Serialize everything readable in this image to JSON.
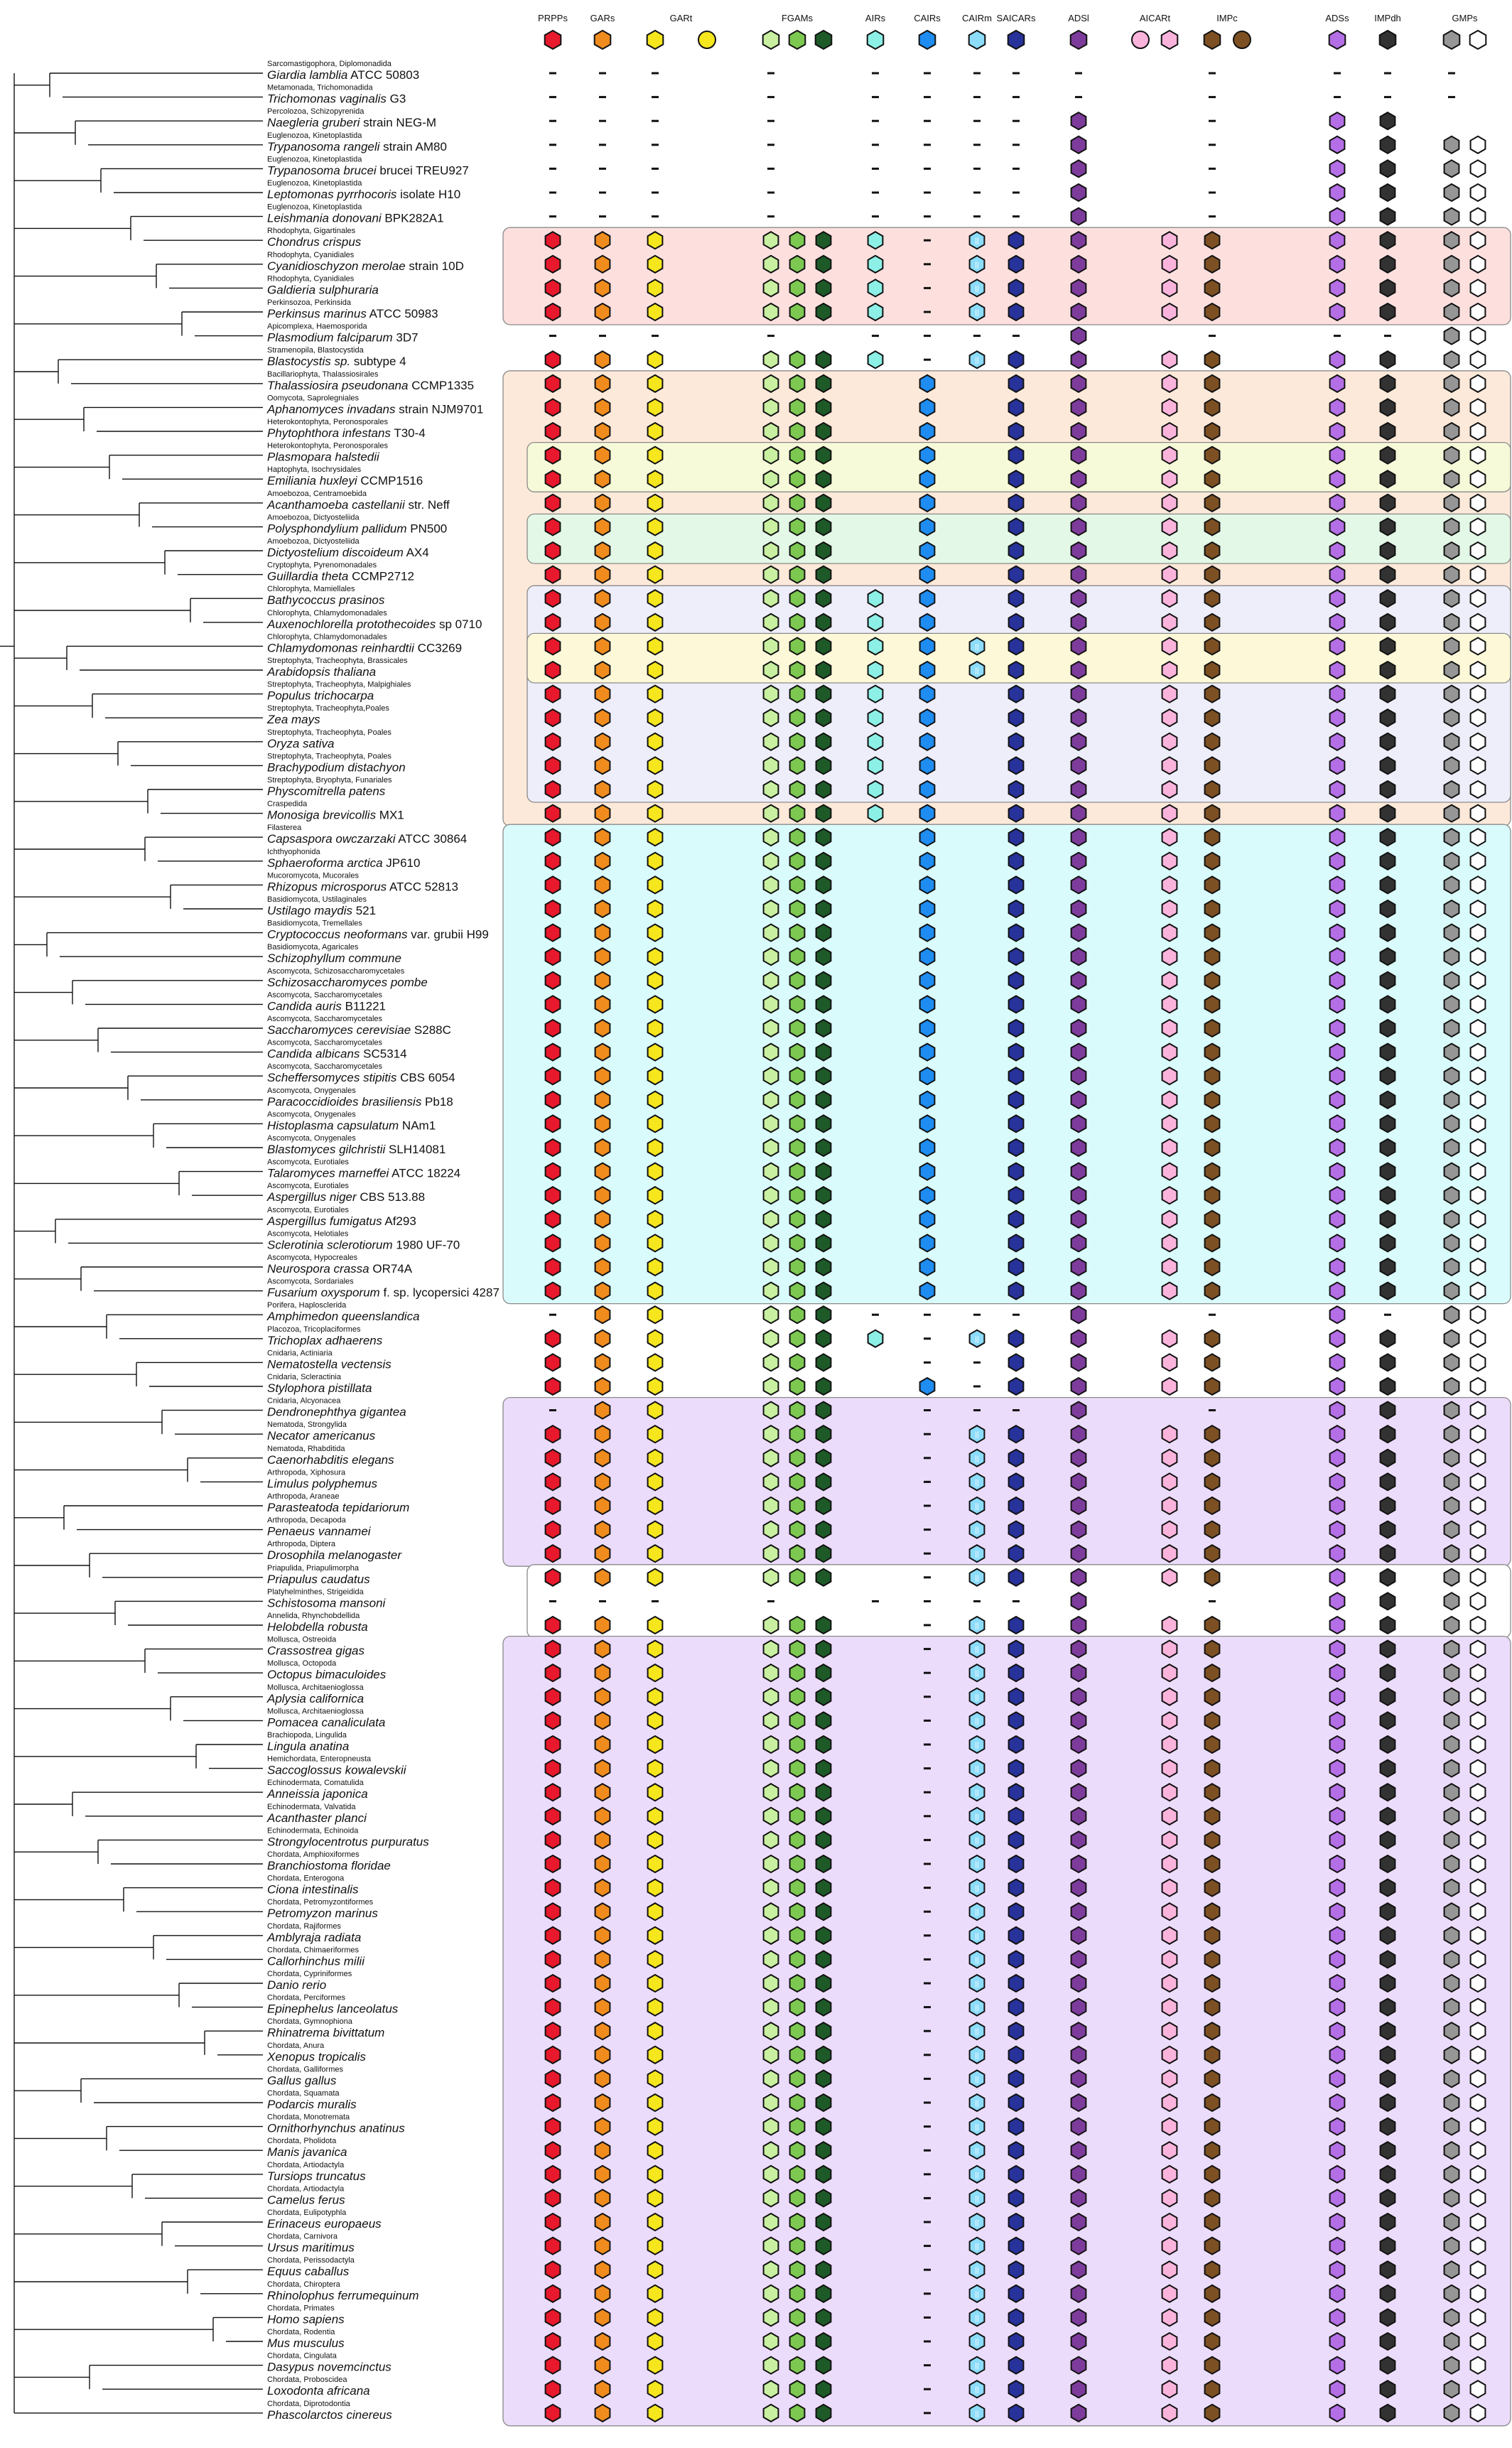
{
  "columns": [
    {
      "id": "prpps",
      "label": "PRPPs",
      "colors": [
        "#e8192c"
      ]
    },
    {
      "id": "gars",
      "label": "GARs",
      "colors": [
        "#f08c1e"
      ]
    },
    {
      "id": "gart",
      "label": "GARt",
      "colors": [
        "#f5e61e",
        "#f5e61e"
      ]
    },
    {
      "id": "fgams",
      "label": "FGAMs",
      "colors": [
        "#c8f0a0",
        "#7cc850",
        "#1e5a28"
      ]
    },
    {
      "id": "airs",
      "label": "AIRs",
      "colors": [
        "#8cf0e6"
      ]
    },
    {
      "id": "cairs",
      "label": "CAIRs",
      "colors": [
        "#1e8cf0"
      ]
    },
    {
      "id": "cairm",
      "label": "CAIRm",
      "colors": [
        "#8cdcfa"
      ]
    },
    {
      "id": "saicars",
      "label": "SAICARs",
      "colors": [
        "#28329b"
      ]
    },
    {
      "id": "adsl",
      "label": "ADSl",
      "colors": [
        "#7d3c9b"
      ]
    },
    {
      "id": "aicart",
      "label": "AICARt",
      "colors": [
        "#fab4dc",
        "#fab4dc"
      ]
    },
    {
      "id": "impc",
      "label": "IMPc",
      "colors": [
        "#7d5023",
        "#7d5023"
      ]
    },
    {
      "id": "adss",
      "label": "ADSs",
      "colors": [
        "#b46ee6"
      ]
    },
    {
      "id": "impdh",
      "label": "IMPdh",
      "colors": [
        "#323232"
      ]
    },
    {
      "id": "gmps",
      "label": "GMPs",
      "colors": [
        "#969696",
        "#ffffff"
      ]
    }
  ],
  "taxa": [
    {
      "group": "Sarcomastigophora, Diplomonadida",
      "species": "Giardia lamblia",
      "strain": "ATCC 50803"
    },
    {
      "group": "Metamonada, Trichomonadida",
      "species": "Trichomonas vaginalis",
      "strain": "G3"
    },
    {
      "group": "Percolozoa, Schizopyrenida",
      "species": "Naegleria gruberi",
      "strain": "strain NEG-M"
    },
    {
      "group": "Euglenozoa, Kinetoplastida",
      "species": "Trypanosoma rangeli",
      "strain": "strain AM80"
    },
    {
      "group": "Euglenozoa, Kinetoplastida",
      "species": "Trypanosoma brucei",
      "strain": "brucei TREU927"
    },
    {
      "group": "Euglenozoa, Kinetoplastida",
      "species": "Leptomonas pyrrhocoris",
      "strain": "isolate H10"
    },
    {
      "group": "Euglenozoa, Kinetoplastida",
      "species": "Leishmania donovani",
      "strain": "BPK282A1"
    },
    {
      "group": "Rhodophyta, Gigartinales",
      "species": "Chondrus crispus",
      "strain": ""
    },
    {
      "group": "Rhodophyta, Cyanidiales",
      "species": "Cyanidioschyzon merolae",
      "strain": "strain 10D"
    },
    {
      "group": "Rhodophyta, Cyanidiales",
      "species": "Galdieria sulphuraria",
      "strain": ""
    },
    {
      "group": "Perkinsozoa, Perkinsida",
      "species": "Perkinsus marinus",
      "strain": "ATCC 50983"
    },
    {
      "group": "Apicomplexa, Haemosporida",
      "species": "Plasmodium falciparum",
      "strain": "3D7"
    },
    {
      "group": "Stramenopila, Blastocystida",
      "species": "Blastocystis sp.",
      "strain": "subtype 4"
    },
    {
      "group": "Bacillariophyta, Thalassiosirales",
      "species": "Thalassiosira pseudonana",
      "strain": "CCMP1335"
    },
    {
      "group": "Oomycota, Saprolegniales",
      "species": "Aphanomyces invadans",
      "strain": "strain NJM9701"
    },
    {
      "group": "Heterokontophyta, Peronosporales",
      "species": "Phytophthora infestans",
      "strain": "T30-4"
    },
    {
      "group": "Heterokontophyta, Peronosporales",
      "species": "Plasmopara halstedii",
      "strain": ""
    },
    {
      "group": "Haptophyta, Isochrysidales",
      "species": "Emiliania huxleyi",
      "strain": "CCMP1516"
    },
    {
      "group": "Amoebozoa, Centramoebida",
      "species": "Acanthamoeba castellanii",
      "strain": "str. Neff"
    },
    {
      "group": "Amoebozoa, Dictyosteliida",
      "species": "Polysphondylium pallidum",
      "strain": "PN500"
    },
    {
      "group": "Amoebozoa, Dictyosteliida",
      "species": "Dictyostelium discoideum",
      "strain": "AX4"
    },
    {
      "group": "Cryptophyta, Pyrenomonadales",
      "species": "Guillardia theta",
      "strain": "CCMP2712"
    },
    {
      "group": "Chlorophyta, Mamiellales",
      "species": "Bathycoccus prasinos",
      "strain": ""
    },
    {
      "group": "Chlorophyta, Chlamydomonadales",
      "species": "Auxenochlorella protothecoides",
      "strain": "sp 0710"
    },
    {
      "group": "Chlorophyta, Chlamydomonadales",
      "species": "Chlamydomonas reinhardtii",
      "strain": "CC3269"
    },
    {
      "group": "Streptophyta, Tracheophyta, Brassicales",
      "species": "Arabidopsis thaliana",
      "strain": ""
    },
    {
      "group": "Streptophyta, Tracheophyta, Malpighiales",
      "species": "Populus trichocarpa",
      "strain": ""
    },
    {
      "group": "Streptophyta, Tracheophyta,Poales",
      "species": "Zea mays",
      "strain": ""
    },
    {
      "group": "Streptophyta, Tracheophyta, Poales",
      "species": "Oryza sativa",
      "strain": ""
    },
    {
      "group": "Streptophyta, Tracheophyta, Poales",
      "species": "Brachypodium distachyon",
      "strain": ""
    },
    {
      "group": "Streptophyta, Bryophyta, Funariales",
      "species": "Physcomitrella patens",
      "strain": ""
    },
    {
      "group": "Craspedida",
      "species": "Monosiga brevicollis",
      "strain": "MX1"
    },
    {
      "group": "Filasterea",
      "species": "Capsaspora owczarzaki",
      "strain": "ATCC 30864"
    },
    {
      "group": "Ichthyophonida",
      "species": "Sphaeroforma arctica",
      "strain": "JP610"
    },
    {
      "group": "Mucoromycota, Mucorales",
      "species": "Rhizopus microsporus",
      "strain": "ATCC 52813"
    },
    {
      "group": "Basidiomycota, Ustilaginales",
      "species": "Ustilago maydis",
      "strain": "521"
    },
    {
      "group": "Basidiomycota, Tremellales",
      "species": "Cryptococcus neoformans",
      "strain": "var. grubii H99"
    },
    {
      "group": "Basidiomycota, Agaricales",
      "species": "Schizophyllum commune",
      "strain": ""
    },
    {
      "group": "Ascomycota, Schizosaccharomycetales",
      "species": "Schizosaccharomyces pombe",
      "strain": ""
    },
    {
      "group": "Ascomycota, Saccharomycetales",
      "species": "Candida auris",
      "strain": "B11221"
    },
    {
      "group": "Ascomycota, Saccharomycetales",
      "species": "Saccharomyces cerevisiae",
      "strain": "S288C"
    },
    {
      "group": "Ascomycota, Saccharomycetales",
      "species": "Candida albicans",
      "strain": "SC5314"
    },
    {
      "group": "Ascomycota, Saccharomycetales",
      "species": "Scheffersomyces stipitis",
      "strain": "CBS 6054"
    },
    {
      "group": "Ascomycota, Onygenales",
      "species": "Paracoccidioides brasiliensis",
      "strain": "Pb18"
    },
    {
      "group": "Ascomycota, Onygenales",
      "species": "Histoplasma capsulatum",
      "strain": "NAm1"
    },
    {
      "group": "Ascomycota, Onygenales",
      "species": "Blastomyces gilchristii",
      "strain": "SLH14081"
    },
    {
      "group": "Ascomycota, Eurotiales",
      "species": "Talaromyces marneffei",
      "strain": "ATCC 18224"
    },
    {
      "group": "Ascomycota, Eurotiales",
      "species": "Aspergillus niger",
      "strain": "CBS 513.88"
    },
    {
      "group": "Ascomycota, Eurotiales",
      "species": "Aspergillus fumigatus",
      "strain": "Af293"
    },
    {
      "group": "Ascomycota, Helotiales",
      "species": "Sclerotinia sclerotiorum",
      "strain": "1980 UF-70"
    },
    {
      "group": "Ascomycota, Hypocreales",
      "species": "Neurospora crassa",
      "strain": "OR74A"
    },
    {
      "group": "Ascomycota, Sordariales",
      "species": "Fusarium oxysporum",
      "strain": "f. sp. lycopersici 4287"
    },
    {
      "group": "Porifera, Haplosclerida",
      "species": "Amphimedon queenslandica",
      "strain": ""
    },
    {
      "group": "Placozoa, Tricoplaciformes",
      "species": "Trichoplax adhaerens",
      "strain": ""
    },
    {
      "group": "Cnidaria, Actiniaria",
      "species": "Nematostella vectensis",
      "strain": ""
    },
    {
      "group": "Cnidaria, Scleractinia",
      "species": "Stylophora pistillata",
      "strain": ""
    },
    {
      "group": "Cnidaria, Alcyonacea",
      "species": "Dendronephthya gigantea",
      "strain": ""
    },
    {
      "group": "Nematoda, Strongylida",
      "species": "Necator americanus",
      "strain": ""
    },
    {
      "group": "Nematoda, Rhabditida",
      "species": "Caenorhabditis elegans",
      "strain": ""
    },
    {
      "group": "Arthropoda, Xiphosura",
      "species": "Limulus polyphemus",
      "strain": ""
    },
    {
      "group": "Arthropoda, Araneae",
      "species": "Parasteatoda tepidariorum",
      "strain": ""
    },
    {
      "group": "Arthropoda, Decapoda",
      "species": "Penaeus vannamei",
      "strain": ""
    },
    {
      "group": "Arthropoda, Diptera",
      "species": "Drosophila melanogaster",
      "strain": ""
    },
    {
      "group": "Priapulida, Priapulimorpha",
      "species": "Priapulus caudatus",
      "strain": ""
    },
    {
      "group": "Platyhelminthes, Strigeidida",
      "species": "Schistosoma mansoni",
      "strain": ""
    },
    {
      "group": "Annelida, Rhynchobdellida",
      "species": "Helobdella robusta",
      "strain": ""
    },
    {
      "group": "Mollusca, Ostreoida",
      "species": "Crassostrea gigas",
      "strain": ""
    },
    {
      "group": "Mollusca, Octopoda",
      "species": "Octopus bimaculoides",
      "strain": ""
    },
    {
      "group": "Mollusca, Architaenioglossa",
      "species": "Aplysia californica",
      "strain": ""
    },
    {
      "group": "Mollusca, Architaenioglossa",
      "species": "Pomacea canaliculata",
      "strain": ""
    },
    {
      "group": "Brachiopoda, Lingulida",
      "species": "Lingula anatina",
      "strain": ""
    },
    {
      "group": "Hemichordata, Enteropneusta",
      "species": "Saccoglossus kowalevskii",
      "strain": ""
    },
    {
      "group": "Echinodermata, Comatulida",
      "species": "Anneissia japonica",
      "strain": ""
    },
    {
      "group": "Echinodermata, Valvatida",
      "species": "Acanthaster planci",
      "strain": ""
    },
    {
      "group": "Echinodermata, Echinoida",
      "species": "Strongylocentrotus purpuratus",
      "strain": ""
    },
    {
      "group": "Chordata, Amphioxiformes",
      "species": "Branchiostoma floridae",
      "strain": ""
    },
    {
      "group": "Chordata, Enterogona",
      "species": "Ciona intestinalis",
      "strain": ""
    },
    {
      "group": "Chordata, Petromyzontiformes",
      "species": "Petromyzon marinus",
      "strain": ""
    },
    {
      "group": "Chordata, Rajiformes",
      "species": "Amblyraja radiata",
      "strain": ""
    },
    {
      "group": "Chordata, Chimaeriformes",
      "species": "Callorhinchus milii",
      "strain": ""
    },
    {
      "group": "Chordata, Cypriniformes",
      "species": "Danio rerio",
      "strain": ""
    },
    {
      "group": "Chordata, Perciformes",
      "species": "Epinephelus lanceolatus",
      "strain": ""
    },
    {
      "group": "Chordata, Gymnophiona",
      "species": "Rhinatrema bivittatum",
      "strain": ""
    },
    {
      "group": "Chordata, Anura",
      "species": "Xenopus tropicalis",
      "strain": ""
    },
    {
      "group": "Chordata, Galliformes",
      "species": "Gallus gallus",
      "strain": ""
    },
    {
      "group": "Chordata, Squamata",
      "species": "Podarcis muralis",
      "strain": ""
    },
    {
      "group": "Chordata, Monotremata",
      "species": "Ornithorhynchus anatinus",
      "strain": ""
    },
    {
      "group": "Chordata, Pholidota",
      "species": "Manis javanica",
      "strain": ""
    },
    {
      "group": "Chordata, Artiodactyla",
      "species": "Tursiops truncatus",
      "strain": ""
    },
    {
      "group": "Chordata, Artiodactyla",
      "species": "Camelus ferus",
      "strain": ""
    },
    {
      "group": "Chordata, Eulipotyphla",
      "species": "Erinaceus europaeus",
      "strain": ""
    },
    {
      "group": "Chordata, Carnivora",
      "species": "Ursus maritimus",
      "strain": ""
    },
    {
      "group": "Chordata, Perissodactyla",
      "species": "Equus caballus",
      "strain": ""
    },
    {
      "group": "Chordata, Chiroptera",
      "species": "Rhinolophus ferrumequinum",
      "strain": ""
    },
    {
      "group": "Chordata, Primates",
      "species": "Homo sapiens",
      "strain": ""
    },
    {
      "group": "Chordata, Rodentia",
      "species": "Mus musculus",
      "strain": ""
    },
    {
      "group": "Chordata, Cingulata",
      "species": "Dasypus novemcinctus",
      "strain": ""
    },
    {
      "group": "Chordata, Proboscidea",
      "species": "Loxodonta africana",
      "strain": ""
    },
    {
      "group": "Chordata, Diprotodontia",
      "species": "Phascolarctos cinereus",
      "strain": ""
    }
  ],
  "row_profiles": {
    "absent_early": [
      0,
      1
    ],
    "trypanosomatid": [
      2,
      3,
      4,
      5,
      6
    ],
    "full_to_adsl": "default"
  },
  "duplication_notes": [
    "2",
    "3"
  ],
  "colors": {
    "box_pink": "#fde0de",
    "box_orange": "#fde9d9",
    "box_yellowgreen": "#f6fad8",
    "box_green": "#e3f8e6",
    "box_lavender": "#eeeefa",
    "box_yellow": "#fdf9d8",
    "box_cyan": "#dafbfb",
    "box_purple": "#ecdcfb",
    "box_border": "#8a8a8a"
  }
}
